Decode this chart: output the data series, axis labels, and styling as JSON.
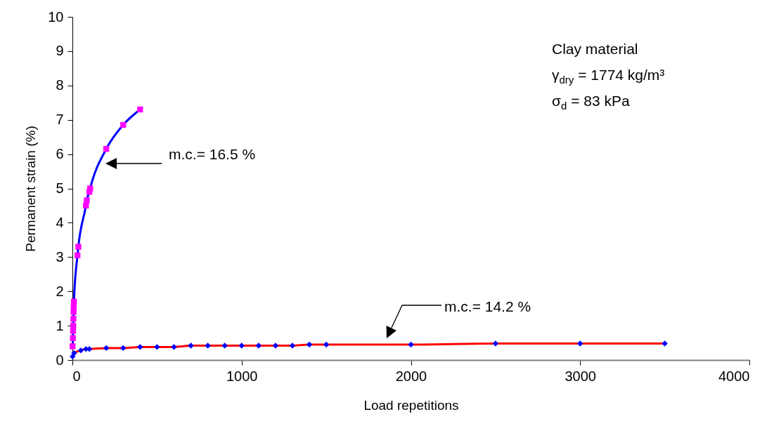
{
  "chart_data": {
    "type": "line",
    "xlabel": "Load repetitions",
    "ylabel": "Permanent strain (%)",
    "xlim": [
      0,
      4000
    ],
    "xticks": [
      0,
      1000,
      2000,
      3000,
      4000
    ],
    "ylim": [
      0,
      10
    ],
    "yticks": [
      0,
      1,
      2,
      3,
      4,
      5,
      6,
      7,
      8,
      9,
      10
    ],
    "grid": false,
    "series": [
      {
        "color": "#0000ff",
        "marker": "square",
        "colors": [
          "#ff00ff",
          "#ff00ff",
          "#ff00ff",
          "#ff00ff",
          "#ff00ff",
          "#ff00ff",
          "#ff00ff",
          "#ff00ff",
          "#ff00ff",
          "#ff00ff",
          "#ff00ff",
          "#ff00ff",
          "#ff00ff",
          "#ff00ff",
          "#ff00ff",
          "#ff00ff",
          "#ff00ff"
        ],
        "x": [
          1,
          3,
          4,
          5,
          6,
          7,
          8,
          9,
          30,
          35,
          80,
          85,
          100,
          105,
          200,
          300,
          400
        ],
        "values": [
          0.4,
          0.64,
          0.85,
          1.0,
          1.2,
          1.4,
          1.55,
          1.7,
          3.05,
          3.3,
          4.5,
          4.65,
          4.9,
          5.0,
          6.15,
          6.85,
          7.3
        ]
      },
      {
        "color": "#ff0000",
        "marker": "diamond",
        "colors": [
          "#0000ff",
          "#0000ff",
          "#0000ff",
          "#0000ff",
          "#0000ff",
          "#0000ff",
          "#0000ff",
          "#0000ff",
          "#0000ff",
          "#0000ff",
          "#0000ff",
          "#0000ff",
          "#0000ff",
          "#0000ff",
          "#0000ff",
          "#0000ff",
          "#0000ff",
          "#0000ff",
          "#0000ff",
          "#0000ff",
          "#0000ff",
          "#0000ff",
          "#0000ff"
        ],
        "x": [
          1,
          10,
          50,
          80,
          100,
          200,
          300,
          400,
          500,
          600,
          700,
          800,
          900,
          1000,
          1100,
          1200,
          1300,
          1400,
          1500,
          2000,
          2500,
          3000,
          3500
        ],
        "values": [
          0.1,
          0.2,
          0.28,
          0.32,
          0.32,
          0.35,
          0.35,
          0.38,
          0.38,
          0.38,
          0.42,
          0.42,
          0.42,
          0.42,
          0.42,
          0.42,
          0.42,
          0.45,
          0.45,
          0.45,
          0.48,
          0.48,
          0.48
        ]
      }
    ],
    "annotations": [
      "Clay material",
      "γ$_{dry}$ = 1774 kg/m³",
      "σ$_{d}$ = 83 kPa",
      "m.c.= 16.5 %",
      "m.c.= 14.2 %"
    ]
  }
}
